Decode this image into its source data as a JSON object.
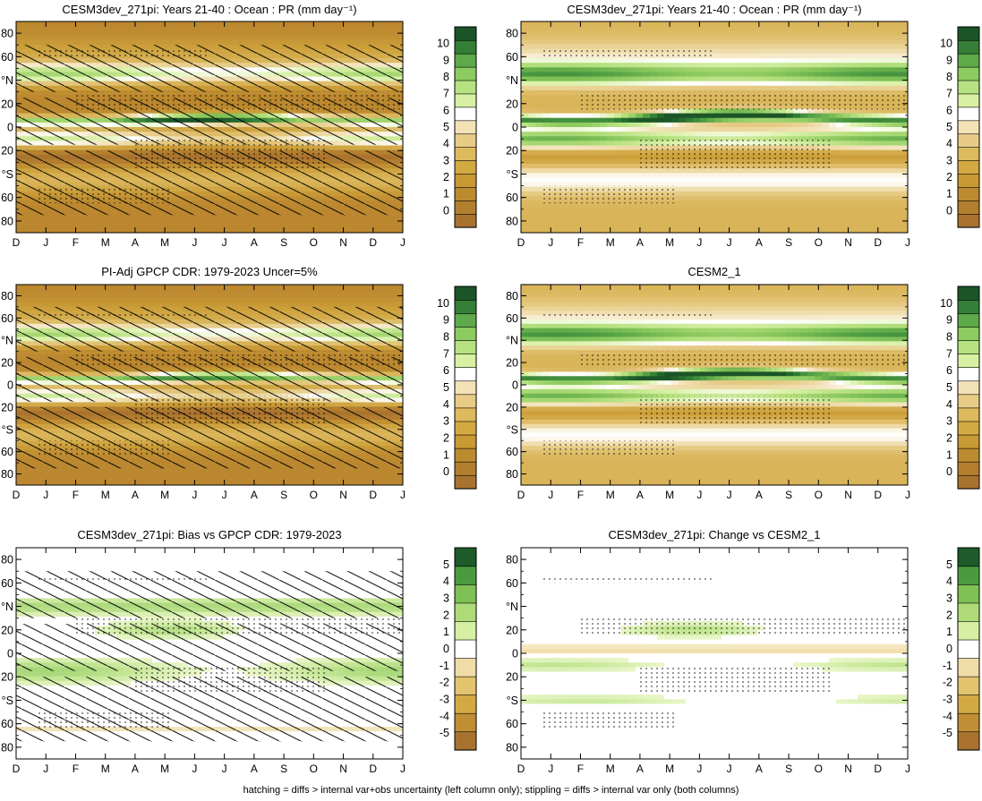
{
  "chart_data": [
    {
      "type": "heatmap",
      "title": "CESM3dev_271pi: Years 21-40 : Ocean : PR (mm day⁻¹)",
      "xlabel": "",
      "ylabel": "",
      "x_ticks": [
        "D",
        "J",
        "F",
        "M",
        "A",
        "M",
        "J",
        "J",
        "A",
        "S",
        "O",
        "N",
        "D",
        "J"
      ],
      "y_ticks": [
        "80",
        "60",
        "°N",
        "20",
        "0",
        "20",
        "°S",
        "60",
        "80"
      ],
      "ylim": [
        -90,
        90
      ],
      "colorbar_labels": [
        "10",
        "9",
        "8",
        "7",
        "6",
        "5",
        "4",
        "3",
        "2",
        "1",
        "0"
      ],
      "colorbar_range": [
        0,
        10
      ],
      "overlay": "hatching + stippling",
      "itcz": {
        "lat_start": 5,
        "lat_peak": 7,
        "peak_value": 10,
        "peak_month": "Jul"
      },
      "wet_band_nh_lat": 45,
      "wet_band_sh_lat": -10,
      "dry_sh_subtropics_value": 1
    },
    {
      "type": "heatmap",
      "title": "CESM3dev_271pi: Years 21-40 : Ocean : PR (mm day⁻¹)",
      "xlabel": "",
      "ylabel": "",
      "x_ticks": [
        "D",
        "J",
        "F",
        "M",
        "A",
        "M",
        "J",
        "J",
        "A",
        "S",
        "O",
        "N",
        "D",
        "J"
      ],
      "y_ticks": [
        "80",
        "60",
        "°N",
        "20",
        "0",
        "20",
        "°S",
        "60",
        "80"
      ],
      "ylim": [
        -90,
        90
      ],
      "colorbar_labels": [
        "10",
        "9",
        "8",
        "7",
        "6",
        "5",
        "4",
        "3",
        "2",
        "1",
        "0"
      ],
      "colorbar_range": [
        0,
        10
      ],
      "overlay": "stippling",
      "itcz": {
        "lat_start": 5,
        "lat_peak": 10,
        "peak_value": 10,
        "peak_month": "Aug"
      },
      "wet_band_nh_lat": 45,
      "wet_band_sh_lat": -10,
      "dry_sh_subtropics_value": 3
    },
    {
      "type": "heatmap",
      "title": "PI-Adj GPCP CDR: 1979-2023 Uncer=5%",
      "xlabel": "",
      "ylabel": "",
      "x_ticks": [
        "D",
        "J",
        "F",
        "M",
        "A",
        "M",
        "J",
        "J",
        "A",
        "S",
        "O",
        "N",
        "D",
        "J"
      ],
      "y_ticks": [
        "80",
        "60",
        "°N",
        "20",
        "0",
        "20",
        "°S",
        "60",
        "80"
      ],
      "ylim": [
        -90,
        90
      ],
      "colorbar_labels": [
        "10",
        "9",
        "8",
        "7",
        "6",
        "5",
        "4",
        "3",
        "2",
        "1",
        "0"
      ],
      "colorbar_range": [
        0,
        10
      ],
      "overlay": "hatching + stippling",
      "itcz": {
        "lat_start": 5,
        "lat_peak": 7,
        "peak_value": 8,
        "peak_month": "Aug"
      },
      "wet_band_nh_lat": 45,
      "wet_band_sh_lat": -10,
      "dry_sh_subtropics_value": 1
    },
    {
      "type": "heatmap",
      "title": "CESM2_1",
      "xlabel": "",
      "ylabel": "",
      "x_ticks": [
        "D",
        "J",
        "F",
        "M",
        "A",
        "M",
        "J",
        "J",
        "A",
        "S",
        "O",
        "N",
        "D",
        "J"
      ],
      "y_ticks": [
        "80",
        "60",
        "°N",
        "20",
        "0",
        "20",
        "°S",
        "60",
        "80"
      ],
      "ylim": [
        -90,
        90
      ],
      "colorbar_labels": [
        "10",
        "9",
        "8",
        "7",
        "6",
        "5",
        "4",
        "3",
        "2",
        "1",
        "0"
      ],
      "colorbar_range": [
        0,
        10
      ],
      "overlay": "stippling",
      "itcz": {
        "lat_start": 5,
        "lat_peak": 10,
        "peak_value": 10,
        "peak_month": "Aug"
      },
      "wet_band_nh_lat": 45,
      "wet_band_sh_lat": -10,
      "dry_sh_subtropics_value": 3
    },
    {
      "type": "heatmap",
      "title": "CESM3dev_271pi: Bias vs GPCP CDR: 1979-2023",
      "xlabel": "",
      "ylabel": "",
      "x_ticks": [
        "D",
        "J",
        "F",
        "M",
        "A",
        "M",
        "J",
        "J",
        "A",
        "S",
        "O",
        "N",
        "D",
        "J"
      ],
      "y_ticks": [
        "80",
        "60",
        "°N",
        "20",
        "0",
        "20",
        "°S",
        "60",
        "80"
      ],
      "ylim": [
        -90,
        90
      ],
      "colorbar_labels": [
        "5",
        "4",
        "3",
        "2",
        "1",
        "0",
        "-1",
        "-2",
        "-3",
        "-4",
        "-5"
      ],
      "colorbar_range": [
        -5,
        5
      ],
      "overlay": "hatching + stippling"
    },
    {
      "type": "heatmap",
      "title": "CESM3dev_271pi: Change vs CESM2_1",
      "xlabel": "",
      "ylabel": "",
      "x_ticks": [
        "D",
        "J",
        "F",
        "M",
        "A",
        "M",
        "J",
        "J",
        "A",
        "S",
        "O",
        "N",
        "D",
        "J"
      ],
      "y_ticks": [
        "80",
        "60",
        "°N",
        "20",
        "0",
        "20",
        "°S",
        "60",
        "80"
      ],
      "ylim": [
        -90,
        90
      ],
      "colorbar_labels": [
        "5",
        "4",
        "3",
        "2",
        "1",
        "0",
        "-1",
        "-2",
        "-3",
        "-4",
        "-5"
      ],
      "colorbar_range": [
        -5,
        5
      ],
      "overlay": "stippling"
    }
  ],
  "footer": "hatching = diffs > internal var+obs uncertainty (left column only); stippling = diffs > internal var only (both columns)",
  "colors": {
    "dry": "#a8742e",
    "white": "#ffffff",
    "green_light": "#c8e89a",
    "green_dark": "#1e5e2a"
  }
}
